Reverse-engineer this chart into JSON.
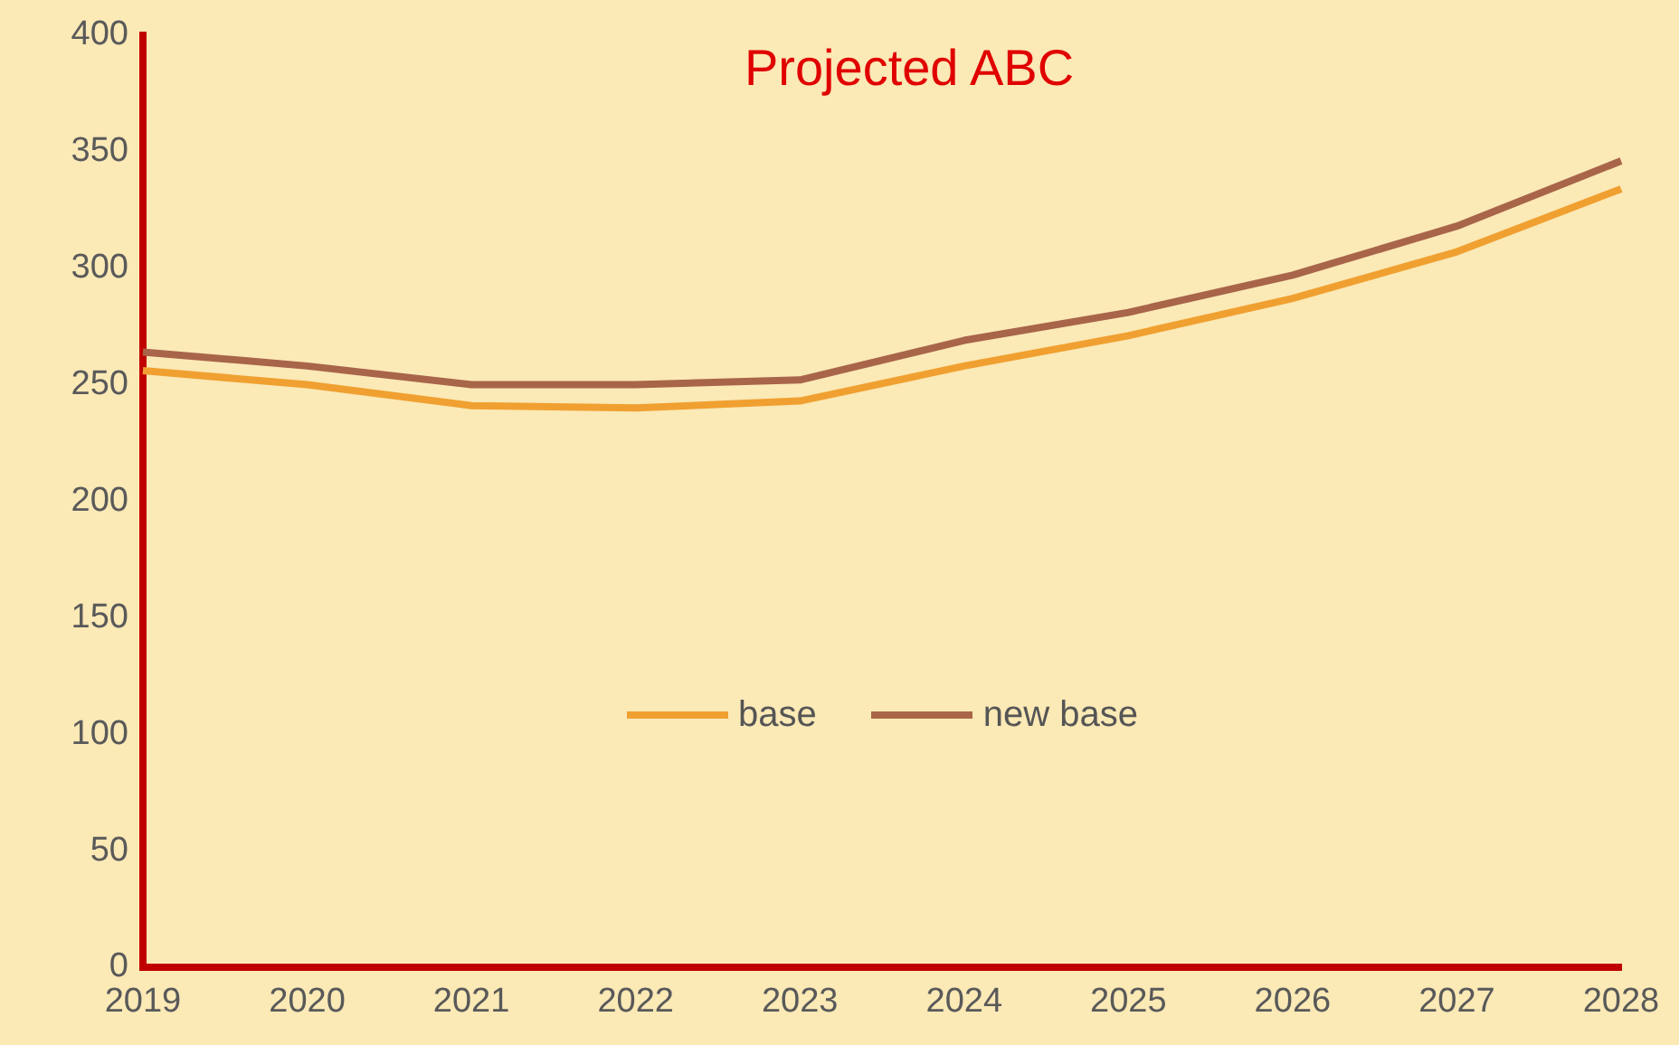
{
  "chart_data": {
    "type": "line",
    "title": "Projected ABC",
    "categories": [
      "2019",
      "2020",
      "2021",
      "2022",
      "2023",
      "2024",
      "2025",
      "2026",
      "2027",
      "2028"
    ],
    "series": [
      {
        "name": "base",
        "color": "#f0a030",
        "values": [
          256,
          250,
          241,
          240,
          243,
          258,
          271,
          287,
          307,
          334
        ]
      },
      {
        "name": "new base",
        "color": "#a8654a",
        "values": [
          264,
          258,
          250,
          250,
          252,
          269,
          281,
          297,
          318,
          346
        ]
      }
    ],
    "ylim": [
      0,
      400
    ],
    "yticks": [
      0,
      50,
      100,
      150,
      200,
      250,
      300,
      350,
      400
    ],
    "grid": false,
    "legend": "center",
    "marker": "none",
    "line_style": "solid"
  }
}
